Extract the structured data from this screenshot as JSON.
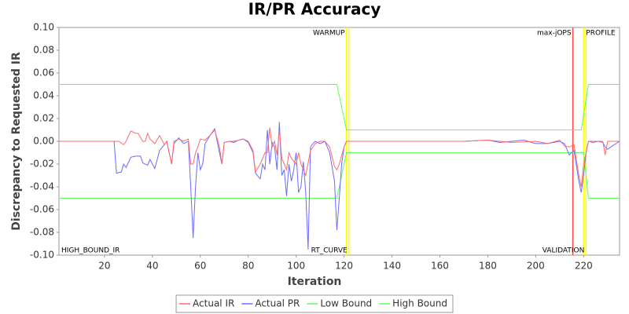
{
  "chart_data": {
    "type": "line",
    "title": "IR/PR Accuracy",
    "xlabel": "Iteration",
    "ylabel": "Discrepancy to Requested IR",
    "xlim": [
      1,
      235
    ],
    "ylim": [
      -0.1,
      0.1
    ],
    "xticks": [
      20,
      40,
      60,
      80,
      100,
      120,
      140,
      160,
      180,
      200,
      220
    ],
    "yticks": [
      {
        "value": -0.1,
        "label": "-0.10"
      },
      {
        "value": -0.08,
        "label": "-0.08"
      },
      {
        "value": -0.06,
        "label": "-0.06"
      },
      {
        "value": -0.04,
        "label": "-0.04"
      },
      {
        "value": -0.02,
        "label": "-0.02"
      },
      {
        "value": 0,
        "label": "0.00"
      },
      {
        "value": 0.02,
        "label": "0.02"
      },
      {
        "value": 0.04,
        "label": "0.04"
      },
      {
        "value": 0.06,
        "label": "0.06"
      },
      {
        "value": 0.08,
        "label": "0.08"
      },
      {
        "value": 0.1,
        "label": "0.10"
      }
    ],
    "grid": false,
    "legend": "bottom",
    "series": [
      {
        "name": "Actual IR",
        "color": "#ff6b6b",
        "x": [
          1,
          24,
          26,
          28,
          29,
          31,
          33,
          34,
          36,
          37,
          38,
          39,
          41,
          43,
          45,
          46,
          48,
          49,
          51,
          53,
          55,
          56,
          57,
          58,
          59,
          60,
          62,
          64,
          66,
          68,
          69,
          70,
          72,
          74,
          76,
          78,
          80,
          82,
          83,
          85,
          87,
          88,
          89,
          90,
          91,
          92,
          93,
          94,
          96,
          97,
          98,
          100,
          101,
          102,
          104,
          106,
          108,
          110,
          112,
          114,
          116,
          117,
          118,
          120,
          121,
          170,
          180,
          190,
          200,
          205,
          210,
          212,
          214,
          216,
          218,
          219,
          220,
          222,
          224,
          226,
          228,
          229,
          230,
          232,
          235
        ],
        "values": [
          0,
          0,
          0,
          -0.003,
          0,
          0.009,
          0.007,
          0.007,
          0,
          0,
          0.007,
          0.002,
          -0.002,
          0.005,
          -0.003,
          0,
          -0.02,
          0,
          0.002,
          0,
          0.002,
          -0.02,
          -0.02,
          -0.01,
          -0.005,
          0.002,
          0.001,
          0.005,
          0.01,
          -0.005,
          -0.02,
          -0.001,
          0,
          0,
          0.001,
          0.002,
          0,
          -0.008,
          -0.027,
          -0.02,
          -0.01,
          -0.01,
          0.012,
          -0.005,
          0,
          -0.012,
          0.01,
          -0.015,
          -0.025,
          -0.01,
          -0.015,
          -0.02,
          -0.01,
          -0.02,
          -0.03,
          -0.008,
          -0.002,
          0,
          0,
          -0.005,
          -0.022,
          -0.025,
          -0.02,
          -0.005,
          0,
          0,
          0.001,
          -0.001,
          0,
          -0.002,
          0.001,
          -0.004,
          -0.005,
          -0.003,
          -0.03,
          -0.04,
          -0.02,
          0,
          0,
          0,
          0,
          -0.012,
          0,
          0,
          0
        ]
      },
      {
        "name": "Actual PR",
        "color": "#6b6bff",
        "x": [
          1,
          24,
          25,
          27,
          28,
          29,
          31,
          33,
          35,
          36,
          38,
          39,
          41,
          43,
          45,
          46,
          48,
          49,
          51,
          53,
          55,
          56,
          57,
          58,
          59,
          60,
          61,
          62,
          64,
          66,
          68,
          69,
          70,
          72,
          74,
          76,
          78,
          80,
          82,
          83,
          85,
          86,
          87,
          88,
          89,
          90,
          91,
          92,
          93,
          94,
          95,
          96,
          97,
          98,
          99,
          100,
          101,
          102,
          103,
          104,
          105,
          106,
          107,
          108,
          110,
          112,
          114,
          116,
          117,
          118,
          119,
          120,
          121,
          170,
          180,
          185,
          190,
          195,
          200,
          205,
          210,
          212,
          214,
          216,
          218,
          219,
          220,
          221,
          222,
          224,
          226,
          228,
          229,
          230,
          232,
          235
        ],
        "values": [
          0,
          0,
          -0.028,
          -0.027,
          -0.02,
          -0.023,
          -0.014,
          -0.013,
          -0.013,
          -0.019,
          -0.021,
          -0.016,
          -0.024,
          -0.008,
          -0.003,
          0,
          -0.02,
          -0.002,
          0.003,
          -0.002,
          0,
          -0.04,
          -0.085,
          -0.04,
          -0.01,
          -0.025,
          -0.02,
          -0.002,
          0.005,
          0.011,
          -0.01,
          -0.02,
          -0.001,
          0,
          -0.001,
          0.001,
          0.002,
          -0.001,
          -0.01,
          -0.028,
          -0.033,
          -0.02,
          -0.025,
          0.01,
          -0.02,
          -0.001,
          -0.005,
          -0.025,
          0.017,
          -0.03,
          -0.025,
          -0.048,
          -0.02,
          -0.035,
          -0.025,
          -0.01,
          -0.045,
          -0.04,
          -0.018,
          -0.045,
          -0.095,
          -0.005,
          -0.002,
          0,
          -0.002,
          0,
          -0.01,
          -0.035,
          -0.078,
          -0.05,
          -0.02,
          -0.005,
          0,
          0,
          0.001,
          -0.001,
          0,
          0.001,
          -0.002,
          -0.002,
          0,
          -0.002,
          -0.012,
          -0.008,
          -0.035,
          -0.045,
          -0.03,
          -0.01,
          0,
          -0.001,
          0,
          -0.001,
          -0.005,
          -0.007,
          -0.004,
          0
        ]
      },
      {
        "name": "Low Bound",
        "color": "#5cff5c",
        "x": [
          1,
          117,
          121,
          220,
          222,
          235
        ],
        "values": [
          -0.05,
          -0.05,
          -0.01,
          -0.01,
          -0.05,
          -0.05
        ]
      },
      {
        "name": "High Bound",
        "color": "#5cff5c",
        "x": [
          1,
          117,
          121,
          219,
          222,
          235
        ],
        "values": [
          0.05,
          0.05,
          0.01,
          0.01,
          0.05,
          0.05
        ]
      }
    ],
    "markers": [
      {
        "x": 1,
        "label": "HIGH_BOUND_IR",
        "color": "#ffff00",
        "label_position": "bottom",
        "label_side": "right"
      },
      {
        "x": 121,
        "label": "WARMUP",
        "color": "#ffff00",
        "label_position": "top",
        "label_side": "left"
      },
      {
        "x": 122,
        "label": "RT_CURVE",
        "color": "#ffff00",
        "label_position": "bottom",
        "label_side": "left"
      },
      {
        "x": 215.5,
        "label": "max-jOPS",
        "color": "#ff4444",
        "label_position": "top",
        "label_side": "left"
      },
      {
        "x": 220,
        "label": "PROFILE",
        "color": "#ffff00",
        "label_position": "top",
        "label_side": "right"
      },
      {
        "x": 221,
        "label": "VALIDATION",
        "color": "#ffff00",
        "label_position": "bottom",
        "label_side": "left"
      }
    ]
  }
}
